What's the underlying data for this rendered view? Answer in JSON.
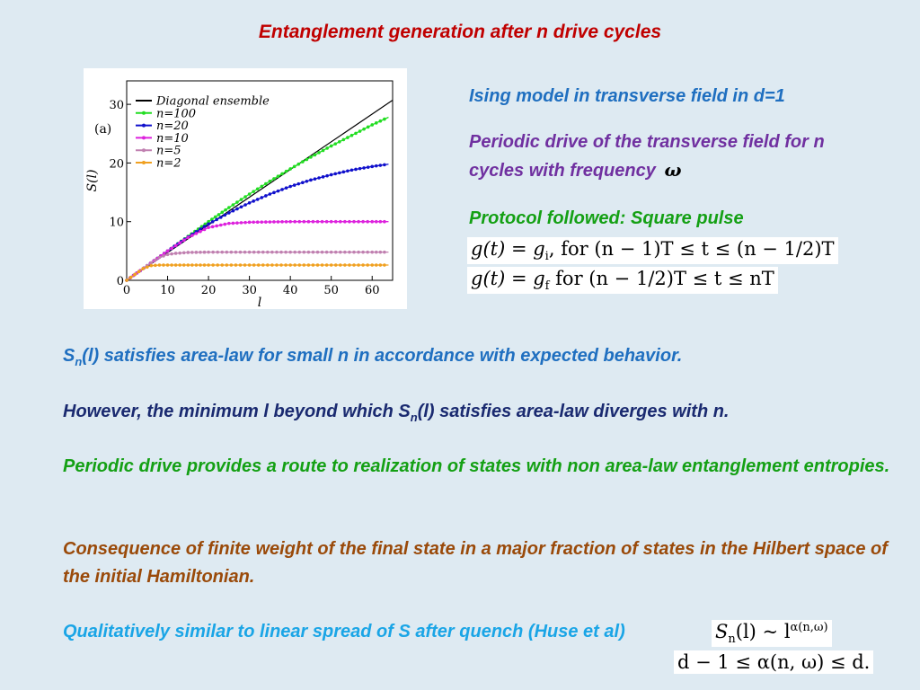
{
  "title": "Entanglement generation after n drive cycles",
  "panel_label": "(a)",
  "right_info": {
    "model": "Ising model in transverse field in d=1",
    "drive_line1": "Periodic drive of the transverse field for n",
    "drive_line2": "cycles with frequency",
    "omega": "ω",
    "protocol": "Protocol followed: Square pulse"
  },
  "formula1": {
    "lhs": "g(t) = g",
    "sub": "i",
    "rest": ",  for  (n − 1)T  ≤  t ≤ (n − 1/2)T"
  },
  "formula2": {
    "lhs": "g(t) = g",
    "sub": "f",
    "rest": "  for  (n − 1/2)T ≤ t ≤ nT"
  },
  "paragraphs": {
    "p1_pre": "S",
    "p1_sub": "n",
    "p1_post": "(l) satisfies area-law for small n in accordance with expected behavior.",
    "p2_pre": "However, the minimum l beyond which S",
    "p2_sub": "n",
    "p2_post": "(l) satisfies area-law diverges with n.",
    "p3": "Periodic drive provides a route to realization of states with non area-law entanglement entropies.",
    "p4": "Consequence of finite weight of the final state in a major fraction of states in the Hilbert space of the initial Hamiltonian.",
    "p5": "Qualitatively similar to linear spread of S after quench (Huse et al)"
  },
  "formula3": {
    "text": "S",
    "sub": "n",
    "rest": "(l) ~ l",
    "sup": "α(n,ω)"
  },
  "formula4": {
    "text": "d − 1  ≤  α(n, ω)  ≤  d."
  },
  "chart_data": {
    "type": "line",
    "xlabel": "l",
    "ylabel": "S(l)",
    "xlim": [
      0,
      65
    ],
    "ylim": [
      0,
      34
    ],
    "xticks": [
      0,
      10,
      20,
      30,
      40,
      50,
      60
    ],
    "yticks": [
      0,
      10,
      20,
      30
    ],
    "legend_position": "top-left",
    "series": [
      {
        "name": "Diagonal ensemble",
        "color": "#000000",
        "style": "line",
        "x": [
          0,
          65
        ],
        "y": [
          0,
          30.7
        ]
      },
      {
        "name": "n=100",
        "color": "#22dd22",
        "style": "points",
        "x": [
          0,
          5,
          10,
          15,
          20,
          25,
          30,
          35,
          40,
          45,
          50,
          55,
          60,
          64
        ],
        "y": [
          0,
          2.5,
          5,
          7.5,
          10,
          12.4,
          14.7,
          16.9,
          19.0,
          21.0,
          22.9,
          24.7,
          26.5,
          27.8
        ]
      },
      {
        "name": "n=20",
        "color": "#1010cc",
        "style": "points",
        "x": [
          0,
          5,
          10,
          15,
          20,
          25,
          30,
          35,
          40,
          45,
          50,
          55,
          60,
          64
        ],
        "y": [
          0,
          2.5,
          5,
          7.4,
          9.6,
          11.5,
          13.2,
          14.7,
          16.0,
          17.1,
          18.0,
          18.8,
          19.4,
          19.8
        ]
      },
      {
        "name": "n=10",
        "color": "#dd22dd",
        "style": "points",
        "x": [
          0,
          5,
          10,
          15,
          20,
          25,
          30,
          35,
          40,
          50,
          60,
          64
        ],
        "y": [
          0,
          2.5,
          5,
          7.3,
          9.0,
          9.7,
          9.9,
          9.95,
          10.0,
          10.0,
          10.0,
          10.0
        ]
      },
      {
        "name": "n=5",
        "color": "#c080b0",
        "style": "points",
        "x": [
          0,
          2,
          4,
          6,
          8,
          10,
          12,
          15,
          20,
          30,
          40,
          50,
          60,
          64
        ],
        "y": [
          0,
          1,
          2,
          3,
          3.9,
          4.4,
          4.6,
          4.75,
          4.8,
          4.8,
          4.8,
          4.8,
          4.8,
          4.8
        ]
      },
      {
        "name": "n=2",
        "color": "#f0a020",
        "style": "points",
        "x": [
          0,
          2,
          4,
          6,
          8,
          10,
          15,
          20,
          30,
          40,
          50,
          60,
          64
        ],
        "y": [
          0,
          1,
          2,
          2.5,
          2.6,
          2.6,
          2.6,
          2.6,
          2.6,
          2.6,
          2.6,
          2.6,
          2.6
        ]
      }
    ]
  }
}
